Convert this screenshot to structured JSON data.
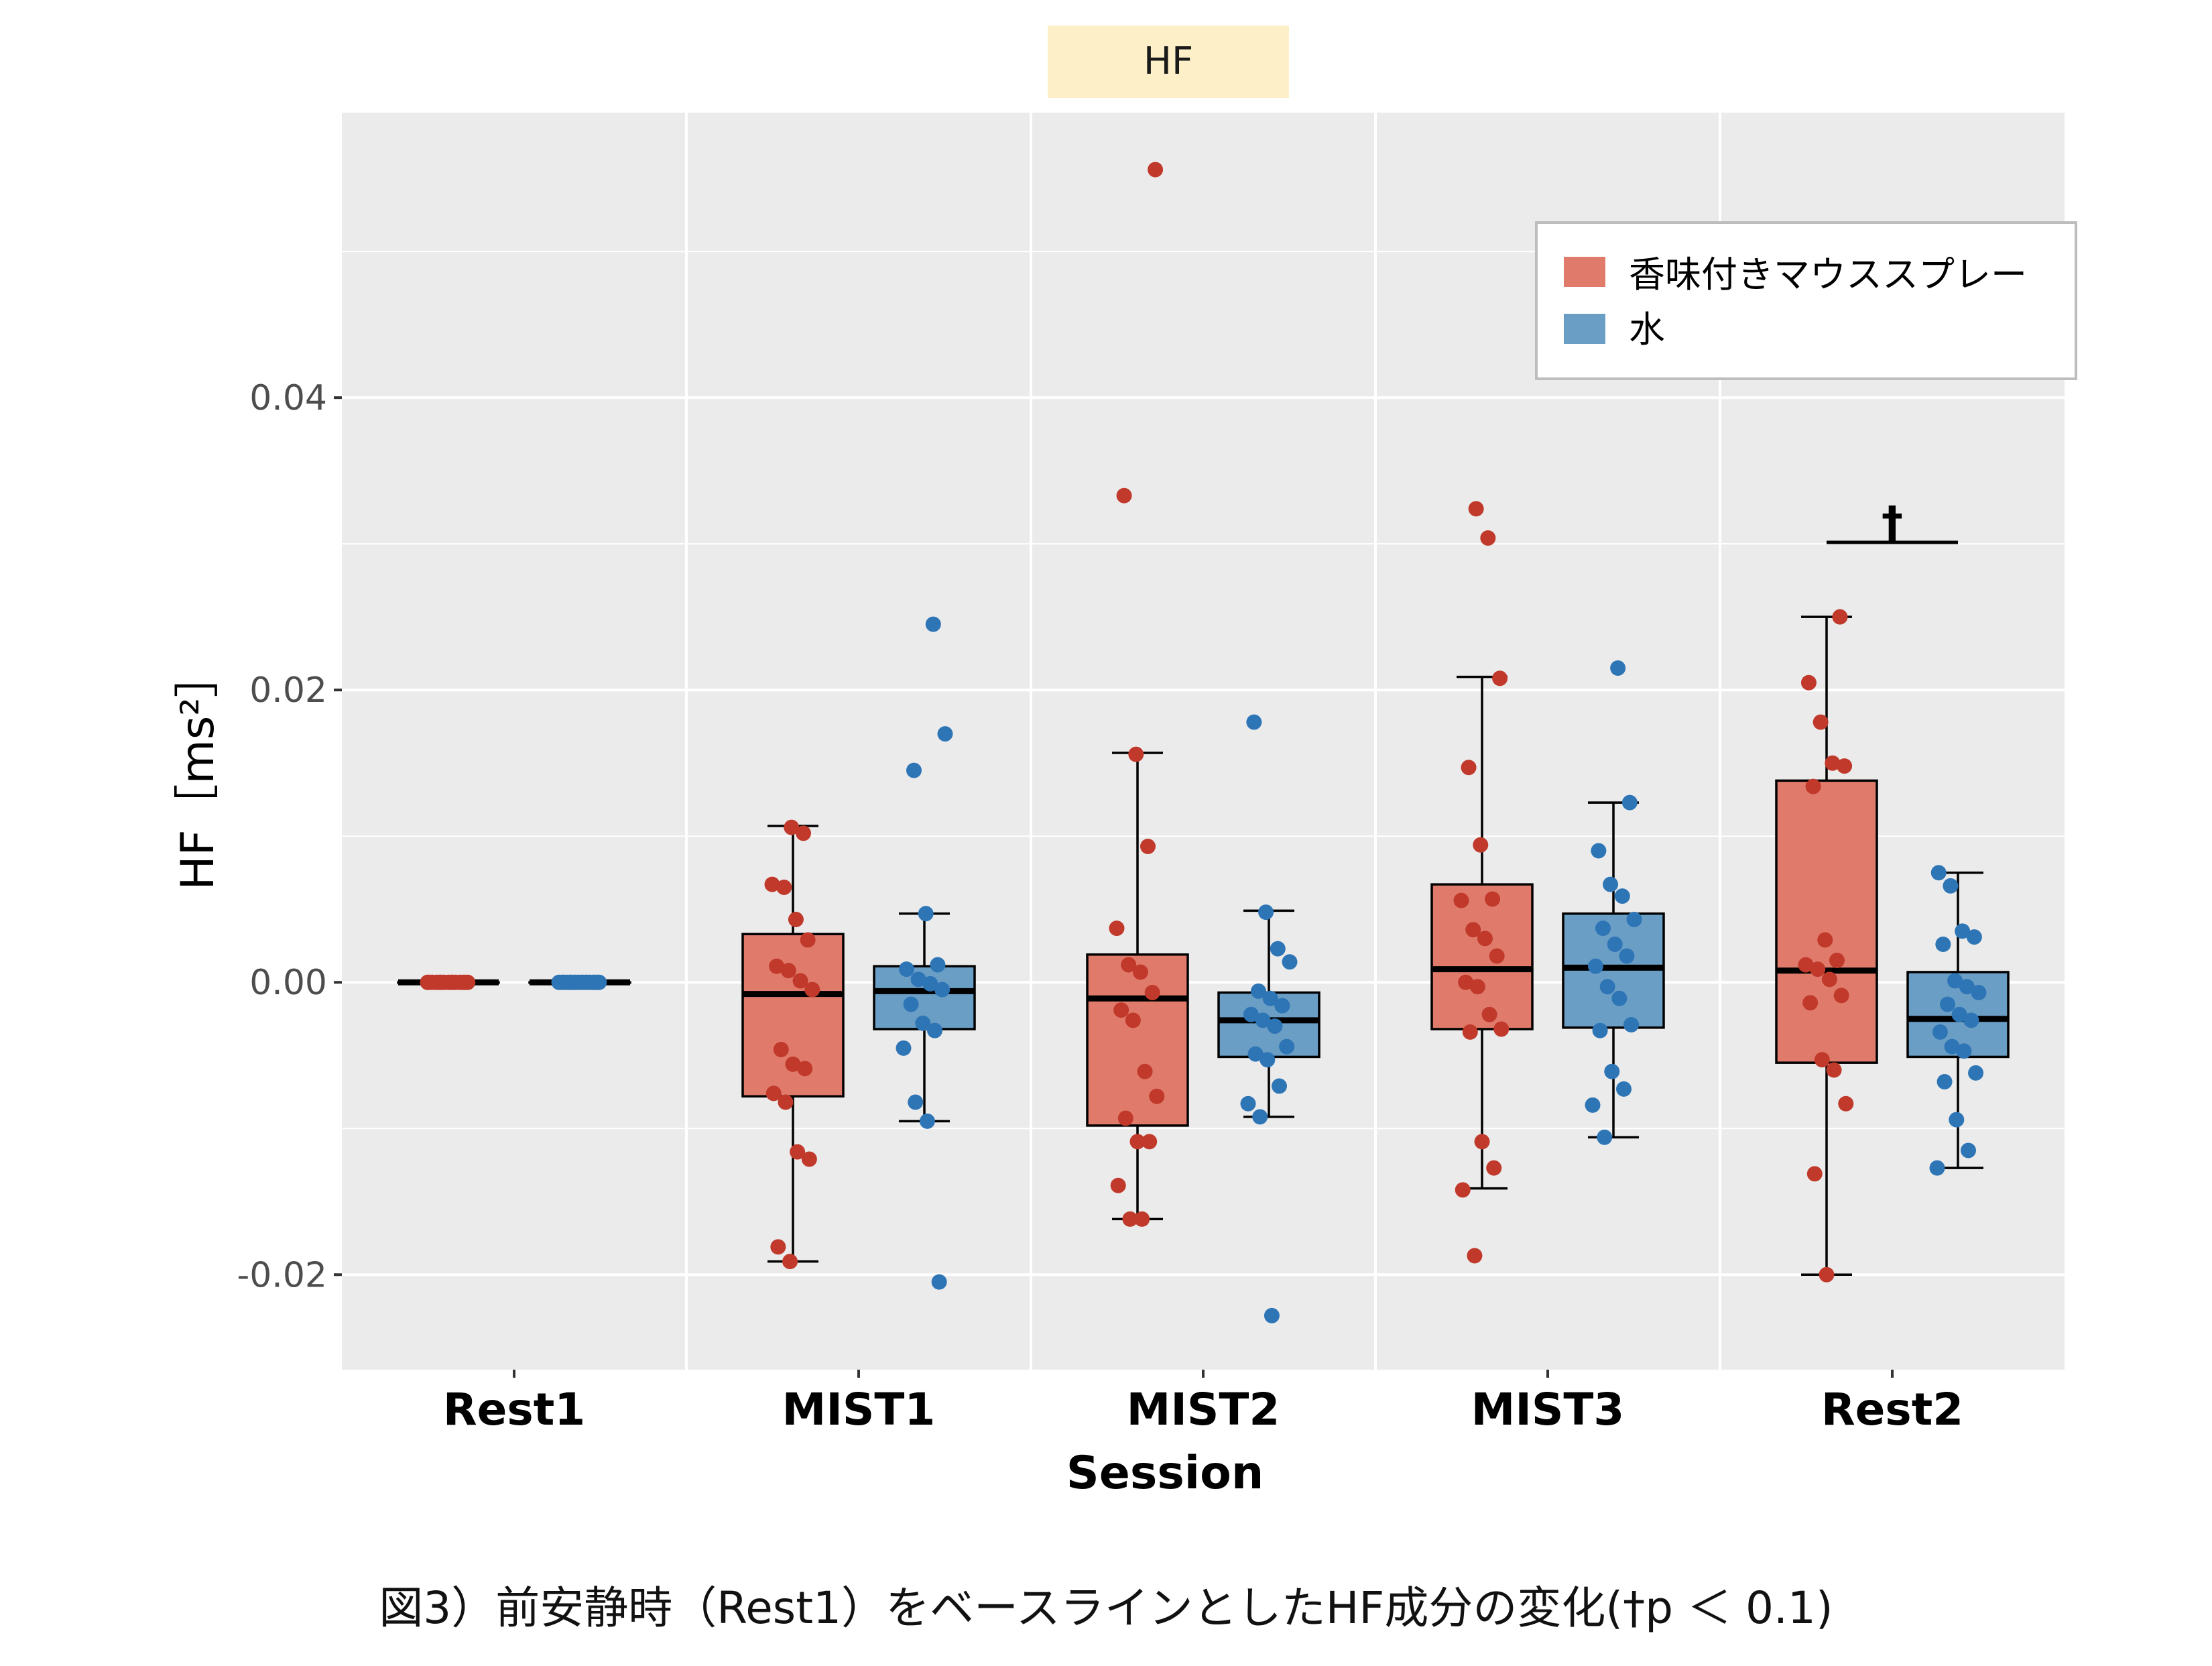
{
  "chart_data": {
    "type": "boxplot",
    "facet_title": "HF",
    "xlabel": "Session",
    "ylabel": "HF［ms²］",
    "ylim": [
      -0.0265,
      0.0595
    ],
    "y_ticks": [
      "0.04",
      "0.02",
      "0.00",
      "-0.02"
    ],
    "y_tick_values": [
      0.04,
      0.02,
      0.0,
      -0.02
    ],
    "categories": [
      "Rest1",
      "MIST1",
      "MIST2",
      "MIST3",
      "Rest2"
    ],
    "legend": {
      "position": "top-right",
      "entries": [
        "香味付きマウススプレー",
        "水"
      ]
    },
    "colors": {
      "series1_fill": "#e07b6b",
      "series2_fill": "#6a9ec5",
      "series1_point": "#c0392b",
      "series2_point": "#2e75b6",
      "panel": "#ebebeb",
      "grid": "#ffffff",
      "strip": "#fdefc8"
    },
    "series": [
      {
        "name": "香味付きマウススプレー",
        "boxes": [
          {
            "category": "Rest1",
            "q1": 0.0,
            "median": 0.0,
            "q3": 0.0,
            "whisker_low": 0.0,
            "whisker_high": 0.0
          },
          {
            "category": "MIST1",
            "q1": -0.0078,
            "median": -0.0008,
            "q3": 0.0033,
            "whisker_low": -0.0191,
            "whisker_high": 0.0107
          },
          {
            "category": "MIST2",
            "q1": -0.0098,
            "median": -0.0011,
            "q3": 0.0019,
            "whisker_low": -0.0162,
            "whisker_high": 0.0157
          },
          {
            "category": "MIST3",
            "q1": -0.0032,
            "median": 0.0009,
            "q3": 0.0067,
            "whisker_low": -0.0141,
            "whisker_high": 0.0209
          },
          {
            "category": "Rest2",
            "q1": -0.0055,
            "median": 0.0008,
            "q3": 0.0138,
            "whisker_low": -0.02,
            "whisker_high": 0.025
          }
        ],
        "points": [
          [
            0.0,
            0.0,
            0.0,
            0.0,
            0.0,
            0.0,
            0.0,
            0.0,
            0.0,
            0.0,
            0.0,
            0.0,
            0.0,
            0.0,
            0.0
          ],
          [
            0.0106,
            0.0102,
            0.0067,
            0.0065,
            0.0043,
            0.0029,
            0.0011,
            0.0008,
            0.0001,
            -0.0005,
            -0.0046,
            -0.0056,
            -0.0059,
            -0.0076,
            -0.0082,
            -0.0116,
            -0.0121,
            -0.0181,
            -0.0191
          ],
          [
            0.0556,
            0.0333,
            0.0156,
            0.0093,
            0.0037,
            0.0012,
            0.0007,
            -0.0007,
            -0.0019,
            -0.0026,
            -0.0061,
            -0.0078,
            -0.0093,
            -0.0109,
            -0.0109,
            -0.0139,
            -0.0162,
            -0.0162
          ],
          [
            0.0324,
            0.0304,
            0.0208,
            0.0147,
            0.0094,
            0.0057,
            0.0056,
            0.0036,
            0.003,
            0.0018,
            0.0,
            -0.0003,
            -0.0022,
            -0.0032,
            -0.0034,
            -0.0109,
            -0.0127,
            -0.0142,
            -0.0187
          ],
          [
            0.025,
            0.0205,
            0.0178,
            0.015,
            0.0148,
            0.0134,
            0.0029,
            0.0015,
            0.0012,
            0.0009,
            0.0002,
            -0.0009,
            -0.0014,
            -0.0053,
            -0.006,
            -0.0083,
            -0.0131,
            -0.02
          ]
        ]
      },
      {
        "name": "水",
        "boxes": [
          {
            "category": "Rest1",
            "q1": 0.0,
            "median": 0.0,
            "q3": 0.0,
            "whisker_low": 0.0,
            "whisker_high": 0.0
          },
          {
            "category": "MIST1",
            "q1": -0.0032,
            "median": -0.0006,
            "q3": 0.0011,
            "whisker_low": -0.0095,
            "whisker_high": 0.0047
          },
          {
            "category": "MIST2",
            "q1": -0.0051,
            "median": -0.0026,
            "q3": -0.0007,
            "whisker_low": -0.0092,
            "whisker_high": 0.0049
          },
          {
            "category": "MIST3",
            "q1": -0.0031,
            "median": 0.001,
            "q3": 0.0047,
            "whisker_low": -0.0106,
            "whisker_high": 0.0123
          },
          {
            "category": "Rest2",
            "q1": -0.0051,
            "median": -0.0025,
            "q3": 0.0007,
            "whisker_low": -0.0127,
            "whisker_high": 0.0075
          }
        ],
        "points": [
          [
            0.0,
            0.0,
            0.0,
            0.0,
            0.0,
            0.0,
            0.0,
            0.0,
            0.0,
            0.0,
            0.0,
            0.0,
            0.0,
            0.0,
            0.0,
            0.0,
            0.0,
            0.0
          ],
          [
            0.0245,
            0.017,
            0.0145,
            0.0047,
            0.0012,
            0.0009,
            0.0002,
            -0.0001,
            -0.0005,
            -0.0015,
            -0.0028,
            -0.0033,
            -0.0045,
            -0.0082,
            -0.0095,
            -0.0205
          ],
          [
            0.0178,
            0.0048,
            0.0023,
            0.0014,
            -0.0006,
            -0.0011,
            -0.0016,
            -0.0022,
            -0.0026,
            -0.003,
            -0.0044,
            -0.0049,
            -0.0053,
            -0.0071,
            -0.0083,
            -0.0092,
            -0.0228
          ],
          [
            0.0215,
            0.0123,
            0.009,
            0.0067,
            0.0059,
            0.0043,
            0.0037,
            0.0026,
            0.0018,
            0.0011,
            -0.0003,
            -0.0011,
            -0.0029,
            -0.0033,
            -0.0061,
            -0.0073,
            -0.0084,
            -0.0106
          ],
          [
            0.0075,
            0.0066,
            0.0035,
            0.0031,
            0.0026,
            0.0001,
            -0.0003,
            -0.0007,
            -0.0015,
            -0.0022,
            -0.0026,
            -0.0034,
            -0.0044,
            -0.0047,
            -0.0062,
            -0.0068,
            -0.0094,
            -0.0115,
            -0.0127
          ]
        ]
      }
    ],
    "annotation": {
      "label": "†",
      "category": "Rest2",
      "y": 0.0301
    },
    "caption": "図3）前安静時（Rest1）をベースラインとしたHF成分の変化(†p ＜ 0.1)"
  }
}
